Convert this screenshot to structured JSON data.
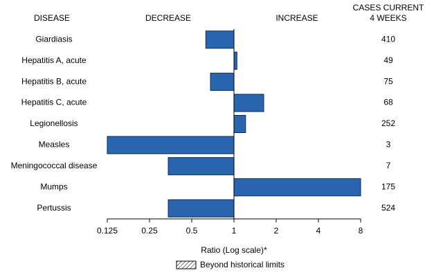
{
  "chart_data": {
    "type": "bar",
    "orientation": "horizontal",
    "headers": {
      "disease": "DISEASE",
      "decrease": "DECREASE",
      "increase": "INCREASE",
      "cases_line1": "CASES CURRENT",
      "cases_line2": "4 WEEKS"
    },
    "categories": [
      "Giardiasis",
      "Hepatitis A, acute",
      "Hepatitis B, acute",
      "Hepatitis C, acute",
      "Legionellosis",
      "Measles",
      "Meningococcal disease",
      "Mumps",
      "Pertussis"
    ],
    "values": [
      0.63,
      1.05,
      0.68,
      1.63,
      1.21,
      0.125,
      0.34,
      8,
      0.34
    ],
    "cases": [
      410,
      49,
      75,
      68,
      252,
      3,
      7,
      175,
      524
    ],
    "color": "#2a66b0",
    "x_scale": "log",
    "xlim": [
      0.125,
      8
    ],
    "xticks": [
      0.125,
      0.25,
      0.5,
      1,
      2,
      4,
      8
    ],
    "x_label": "Ratio (Log scale)*",
    "legend": {
      "label": "Beyond historical limits",
      "position": "bottom"
    }
  }
}
